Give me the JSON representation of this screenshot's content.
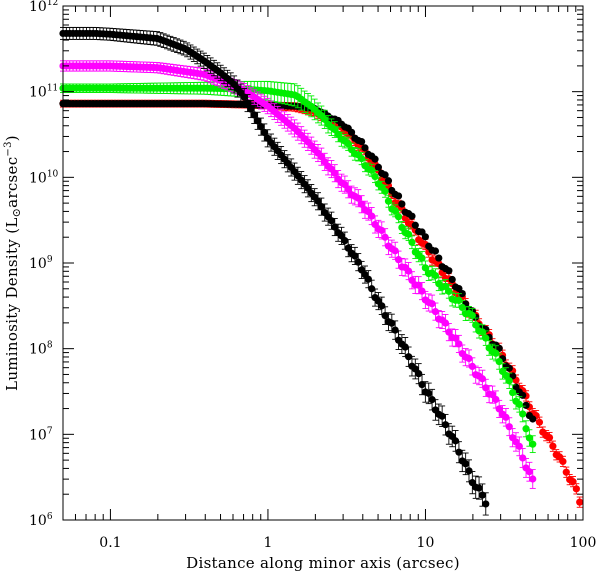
{
  "chart_data": {
    "type": "scatter",
    "title": "",
    "xlabel": "Distance along minor axis (arcsec)",
    "ylabel_main": "Luminosity Density (L",
    "ylabel_sub": "⊙",
    "ylabel_mid": "arcsec",
    "ylabel_sup": "−3",
    "ylabel_end": ")",
    "x_scale": "log",
    "y_scale": "log",
    "xlim": [
      0.05,
      100
    ],
    "ylim": [
      1000000,
      1000000000000
    ],
    "x_ticks": [
      {
        "value": 0.1,
        "label": "0.1"
      },
      {
        "value": 1,
        "label": "1"
      },
      {
        "value": 10,
        "label": "10"
      },
      {
        "value": 100,
        "label": "100"
      }
    ],
    "y_ticks": [
      {
        "value": 1000000,
        "base": "10",
        "exp": "6"
      },
      {
        "value": 10000000,
        "base": "10",
        "exp": "7"
      },
      {
        "value": 100000000,
        "base": "10",
        "exp": "8"
      },
      {
        "value": 1000000000,
        "base": "10",
        "exp": "9"
      },
      {
        "value": 10000000000,
        "base": "10",
        "exp": "10"
      },
      {
        "value": 100000000000,
        "base": "10",
        "exp": "11"
      },
      {
        "value": 1000000000000,
        "base": "10",
        "exp": "12"
      }
    ],
    "grid": false,
    "legend": "none",
    "series": [
      {
        "color": "#ff0000",
        "marker": "filled-circle",
        "error_bars": true,
        "x": [
          0.05,
          0.1,
          0.2,
          0.4,
          0.7,
          1.0,
          1.5,
          2.0,
          3.0,
          4.0,
          5.0,
          7.0,
          10,
          15,
          20,
          30,
          40,
          50,
          70,
          90,
          98
        ],
        "logy": [
          10.86,
          10.86,
          10.86,
          10.86,
          10.85,
          10.84,
          10.82,
          10.76,
          10.57,
          10.33,
          10.08,
          9.62,
          9.18,
          8.72,
          8.4,
          7.95,
          7.55,
          7.2,
          6.75,
          6.36,
          6.18
        ],
        "err": [
          0.04,
          0.04,
          0.04,
          0.04,
          0.04,
          0.04,
          0.05,
          0.05,
          0.05,
          0.05,
          0.05,
          0.05,
          0.06,
          0.06,
          0.06,
          0.06,
          0.06,
          0.06,
          0.06,
          0.06,
          0.06
        ]
      },
      {
        "color": "#000000",
        "marker": "filled-circle",
        "error_bars": false,
        "x": [
          0.05,
          0.1,
          0.2,
          0.4,
          0.7,
          1.0,
          1.5,
          2.0,
          3.0,
          4.0,
          5.0,
          7.0,
          10,
          15,
          20,
          30,
          40,
          50
        ],
        "logy": [
          10.86,
          10.86,
          10.86,
          10.86,
          10.85,
          10.84,
          10.83,
          10.8,
          10.62,
          10.38,
          10.14,
          9.7,
          9.28,
          8.8,
          8.4,
          7.95,
          7.48,
          7.1
        ],
        "err": []
      },
      {
        "color": "#00ee00",
        "marker": "filled-circle",
        "error_bars": true,
        "x": [
          0.05,
          0.1,
          0.2,
          0.4,
          0.7,
          1.0,
          1.5,
          2.0,
          3.0,
          4.0,
          5.0,
          7.0,
          10,
          15,
          20,
          30,
          40,
          50
        ],
        "logy": [
          11.04,
          11.04,
          11.04,
          11.04,
          11.03,
          11.01,
          10.96,
          10.79,
          10.44,
          10.19,
          9.96,
          9.46,
          8.95,
          8.6,
          8.35,
          7.82,
          7.3,
          6.75
        ],
        "err": [
          0.05,
          0.05,
          0.06,
          0.07,
          0.09,
          0.11,
          0.13,
          0.12,
          0.08,
          0.07,
          0.07,
          0.07,
          0.08,
          0.08,
          0.08,
          0.09,
          0.09,
          0.1
        ]
      },
      {
        "color": "#ff00ff",
        "marker": "filled-circle",
        "error_bars": true,
        "x": [
          0.05,
          0.1,
          0.2,
          0.4,
          0.7,
          1.0,
          1.5,
          2.0,
          3.0,
          4.0,
          5.0,
          7.0,
          10,
          15,
          20,
          30,
          40,
          48
        ],
        "logy": [
          11.3,
          11.3,
          11.28,
          11.2,
          11.02,
          10.83,
          10.56,
          10.32,
          9.92,
          9.68,
          9.42,
          9.0,
          8.6,
          8.14,
          7.78,
          7.3,
          6.8,
          6.45
        ],
        "err": [
          0.06,
          0.06,
          0.06,
          0.07,
          0.08,
          0.09,
          0.1,
          0.1,
          0.1,
          0.1,
          0.1,
          0.1,
          0.1,
          0.1,
          0.1,
          0.1,
          0.11,
          0.11
        ]
      },
      {
        "color": "#000000",
        "marker": "filled-circle",
        "error_bars": true,
        "x": [
          0.05,
          0.08,
          0.1,
          0.2,
          0.3,
          0.4,
          0.5,
          0.6,
          0.7,
          0.8,
          1.0,
          1.5,
          2.0,
          3.0,
          4.0,
          5.0,
          7.0,
          10,
          15,
          20,
          25
        ],
        "logy": [
          11.68,
          11.68,
          11.67,
          11.62,
          11.5,
          11.35,
          11.22,
          11.1,
          10.95,
          10.76,
          10.45,
          10.05,
          9.76,
          9.28,
          8.92,
          8.55,
          8.08,
          7.52,
          6.95,
          6.45,
          6.18
        ],
        "err": [
          0.07,
          0.07,
          0.07,
          0.08,
          0.08,
          0.09,
          0.09,
          0.1,
          0.1,
          0.1,
          0.1,
          0.1,
          0.1,
          0.1,
          0.1,
          0.1,
          0.11,
          0.12,
          0.12,
          0.13,
          0.13
        ]
      }
    ]
  }
}
